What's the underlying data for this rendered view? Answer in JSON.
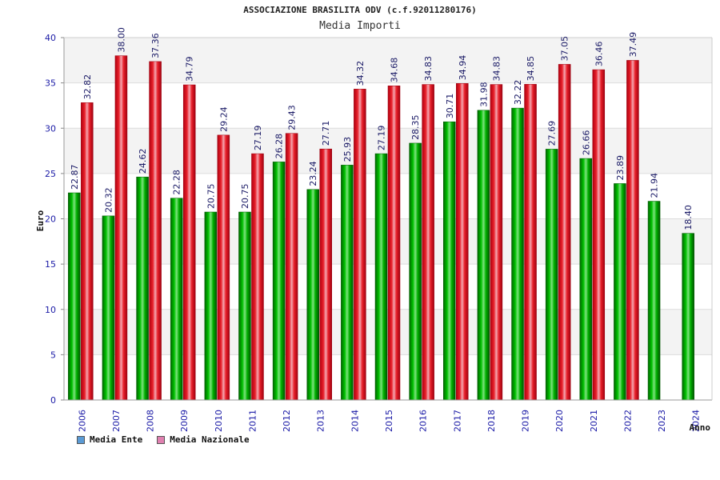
{
  "chart_data": {
    "type": "bar",
    "title": "ASSOCIAZIONE BRASILITA ODV (c.f.92011280176)",
    "subtitle": "Media Importi",
    "xlabel": "Anno",
    "ylabel": "Euro",
    "ylim": [
      0,
      40
    ],
    "yticks": [
      0,
      5,
      10,
      15,
      20,
      25,
      30,
      35,
      40
    ],
    "grid": true,
    "legend_position": "bottom-left",
    "categories": [
      "2006",
      "2007",
      "2008",
      "2009",
      "2010",
      "2011",
      "2012",
      "2013",
      "2014",
      "2015",
      "2016",
      "2017",
      "2018",
      "2019",
      "2020",
      "2021",
      "2022",
      "2023",
      "2024"
    ],
    "series": [
      {
        "name": "Media Ente",
        "color": "#00aa00",
        "legend_color": "#5b9bd5",
        "values": [
          22.87,
          20.32,
          24.62,
          22.28,
          20.75,
          20.75,
          26.28,
          23.24,
          25.93,
          27.19,
          28.35,
          30.71,
          31.98,
          32.22,
          27.69,
          26.66,
          23.89,
          21.94,
          18.4
        ],
        "labels": [
          "22.87",
          "20.32",
          "24.62",
          "22.28",
          "20.75",
          "20.75",
          "26.28",
          "23.24",
          "25.93",
          "27.19",
          "28.35",
          "30.71",
          "31.98",
          "32.22",
          "27.69",
          "26.66",
          "23.89",
          "21.94",
          "18.40"
        ]
      },
      {
        "name": "Media Nazionale",
        "color": "#e8202a",
        "legend_color": "#e080b0",
        "values": [
          32.82,
          38.0,
          37.36,
          34.79,
          29.24,
          27.19,
          29.43,
          27.71,
          34.32,
          34.68,
          34.83,
          34.94,
          34.83,
          34.85,
          37.05,
          36.46,
          37.49,
          null,
          null
        ],
        "labels": [
          "32.82",
          "38.00",
          "37.36",
          "34.79",
          "29.24",
          "27.19",
          "29.43",
          "27.71",
          "34.32",
          "34.68",
          "34.83",
          "34.94",
          "34.83",
          "34.85",
          "37.05",
          "36.46",
          "37.49",
          "",
          ""
        ]
      }
    ]
  }
}
